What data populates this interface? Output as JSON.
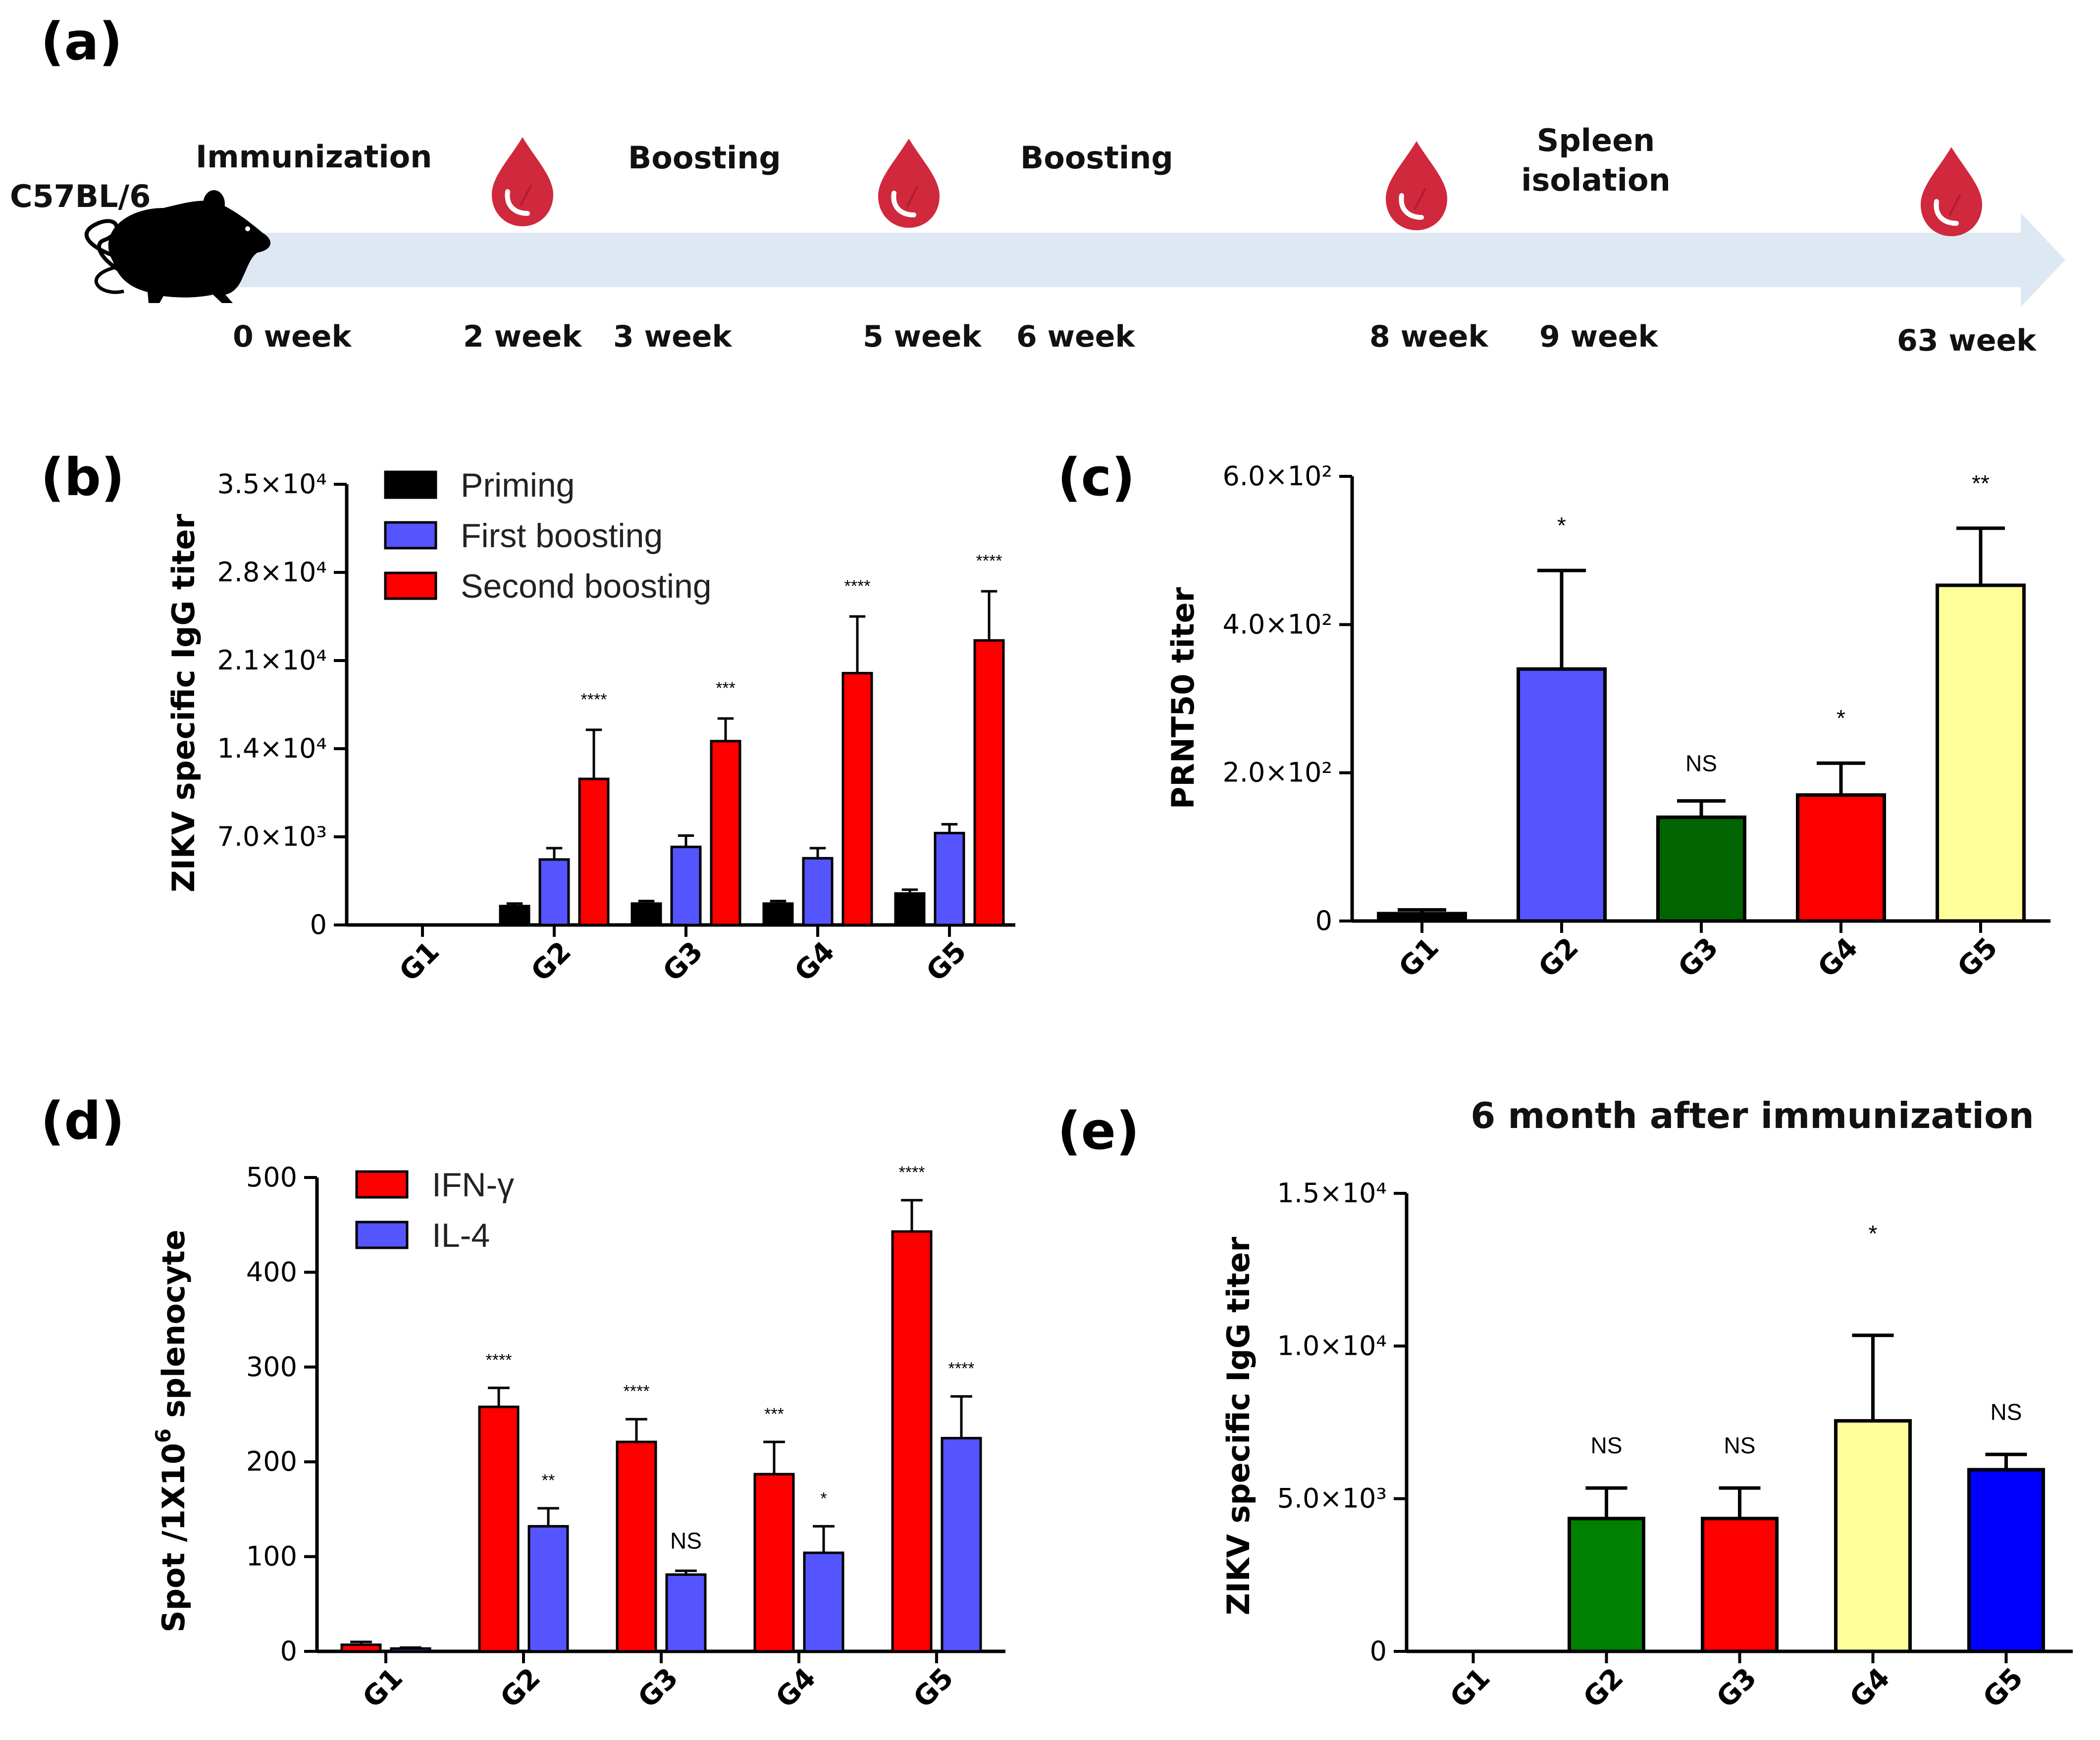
{
  "panel_a": {
    "label": "(a)",
    "strain": "C57BL/6",
    "events": {
      "immunization": "Immunization",
      "boost1": "Boosting",
      "boost2": "Boosting",
      "spleen1": "Spleen",
      "spleen2": "isolation"
    },
    "weeks": [
      "0 week",
      "2 week",
      "3 week",
      "5 week",
      "6 week",
      "8 week",
      "9 week",
      "63 week"
    ],
    "colors": {
      "arrow": "#dde8f3",
      "blood": "#d0283c"
    }
  },
  "chart_data": [
    {
      "panel": "(b)",
      "type": "bar",
      "ylabel": "ZIKV specific IgG titer",
      "ylim": [
        0,
        35000
      ],
      "yticks": [
        "0",
        "7.0×10³",
        "1.4×10⁴",
        "2.1×10⁴",
        "2.8×10⁴",
        "3.5×10⁴"
      ],
      "ytick_values": [
        0,
        7000,
        14000,
        21000,
        28000,
        35000
      ],
      "categories": [
        "G1",
        "G2",
        "G3",
        "G4",
        "G5"
      ],
      "series": [
        {
          "name": "Priming",
          "color": "#000000",
          "values": [
            0,
            1500,
            1700,
            1700,
            2500
          ],
          "errors": [
            0,
            200,
            200,
            200,
            300
          ]
        },
        {
          "name": "First boosting",
          "color": "#5555ff",
          "values": [
            0,
            5200,
            6200,
            5300,
            7300
          ],
          "errors": [
            0,
            900,
            900,
            800,
            700
          ]
        },
        {
          "name": "Second boosting",
          "color": "#ff0000",
          "values": [
            0,
            11600,
            14600,
            20000,
            22600
          ],
          "errors": [
            0,
            3900,
            1800,
            4500,
            3900
          ]
        }
      ],
      "annotations": [
        "",
        "****",
        "***",
        "****",
        "****"
      ],
      "legend_position": "top-left"
    },
    {
      "panel": "(c)",
      "type": "bar",
      "ylabel": "PRNT50 titer",
      "ylim": [
        0,
        600
      ],
      "yticks": [
        "0",
        "2.0×10²",
        "4.0×10²",
        "6.0×10²"
      ],
      "ytick_values": [
        0,
        200,
        400,
        600
      ],
      "categories": [
        "G1",
        "G2",
        "G3",
        "G4",
        "G5"
      ],
      "values": [
        10,
        340,
        140,
        170,
        453
      ],
      "errors": [
        5,
        133,
        22,
        43,
        77
      ],
      "colors": [
        "#000000",
        "#5555ff",
        "#006400",
        "#ff0000",
        "#ffff99"
      ],
      "annotations": [
        "",
        "*",
        "NS",
        "*",
        "**"
      ]
    },
    {
      "panel": "(d)",
      "type": "bar",
      "ylabel_prefix": "Spot /1X10",
      "ylabel_sup": "6",
      "ylabel_suffix": " splenocyte",
      "ylim": [
        0,
        500
      ],
      "yticks": [
        "0",
        "100",
        "200",
        "300",
        "400",
        "500"
      ],
      "ytick_values": [
        0,
        100,
        200,
        300,
        400,
        500
      ],
      "categories": [
        "G1",
        "G2",
        "G3",
        "G4",
        "G5"
      ],
      "series": [
        {
          "name": "IFN-γ",
          "color": "#ff0000",
          "values": [
            7,
            258,
            221,
            187,
            443
          ],
          "errors": [
            3,
            20,
            24,
            34,
            33
          ]
        },
        {
          "name": "IL-4",
          "color": "#5555ff",
          "values": [
            3,
            132,
            81,
            104,
            225
          ],
          "errors": [
            1,
            19,
            4,
            28,
            44
          ]
        }
      ],
      "annotations": [
        [
          "",
          ""
        ],
        [
          "****",
          "**"
        ],
        [
          "****",
          "NS"
        ],
        [
          "***",
          "*"
        ],
        [
          "****",
          "****"
        ]
      ],
      "legend_position": "top-left"
    },
    {
      "panel": "(e)",
      "type": "bar",
      "title": "6 month after immunization",
      "ylabel": "ZIKV specific IgG titer",
      "ylim": [
        0,
        15000
      ],
      "yticks": [
        "0",
        "5.0×10³",
        "1.0×10⁴",
        "1.5×10⁴"
      ],
      "ytick_values": [
        0,
        5000,
        10000,
        15000
      ],
      "categories": [
        "G1",
        "G2",
        "G3",
        "G4",
        "G5"
      ],
      "values": [
        0,
        4350,
        4350,
        7550,
        5950
      ],
      "errors": [
        0,
        1000,
        1000,
        2800,
        500
      ],
      "colors": [
        "#000000",
        "#008000",
        "#ff0000",
        "#ffff99",
        "#0000ff"
      ],
      "annotations": [
        "",
        "NS",
        "NS",
        "*",
        "NS"
      ]
    }
  ]
}
